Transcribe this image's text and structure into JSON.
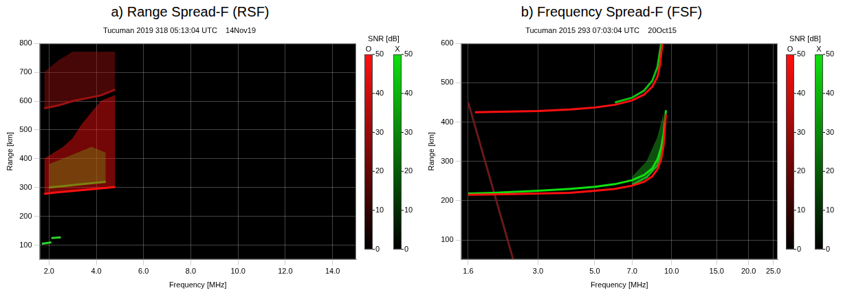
{
  "chart_data": [
    {
      "type": "scatter",
      "title": "a) Range Spread-F (RSF)",
      "subtitle": "Tucuman 2019 318 05:13:04 UTC    14Nov19",
      "xlabel": "Frequency [MHz]",
      "ylabel": "Range [km]",
      "xlim": [
        1.6,
        15
      ],
      "xticks": [
        {
          "value": 2,
          "label": "2.0"
        },
        {
          "value": 4,
          "label": "4.0"
        },
        {
          "value": 6,
          "label": "6.0"
        },
        {
          "value": 8,
          "label": "8.0"
        },
        {
          "value": 10,
          "label": "10.0"
        },
        {
          "value": 12,
          "label": "12.0"
        },
        {
          "value": 14,
          "label": "14.0"
        }
      ],
      "ylim": [
        50,
        800
      ],
      "yticks": [
        100,
        200,
        300,
        400,
        500,
        600,
        700,
        800
      ],
      "grid": true,
      "colorbar": {
        "title": "SNR [dB]",
        "range": [
          0,
          50
        ],
        "ticks": [
          0,
          10,
          20,
          30,
          40,
          50
        ]
      },
      "series": [
        {
          "name": "O",
          "color": "#ff1010",
          "type": "area",
          "x": [
            1.8,
            2.2,
            2.6,
            3.0,
            3.4,
            3.8,
            4.2,
            4.8
          ],
          "values": [
            278,
            282,
            285,
            288,
            291,
            294,
            297,
            302
          ],
          "upper": [
            400,
            420,
            440,
            470,
            520,
            560,
            600,
            620
          ]
        },
        {
          "name": "O",
          "color": "#a01010",
          "type": "area",
          "x": [
            1.8,
            2.4,
            3.0,
            3.6,
            4.2,
            4.8
          ],
          "values": [
            575,
            585,
            600,
            610,
            620,
            640
          ],
          "upper": [
            700,
            740,
            770,
            770,
            770,
            770
          ]
        },
        {
          "name": "X",
          "color": "#10e010",
          "type": "area",
          "x": [
            2.0,
            2.6,
            3.2,
            3.8,
            4.4
          ],
          "values": [
            300,
            305,
            310,
            315,
            320
          ],
          "upper": [
            380,
            400,
            420,
            440,
            420
          ]
        },
        {
          "name": "X",
          "color": "#30d030",
          "type": "line",
          "x": [
            1.7,
            2.1
          ],
          "values": [
            105,
            110
          ]
        },
        {
          "name": "X",
          "color": "#30d030",
          "type": "line",
          "x": [
            2.1,
            2.5
          ],
          "values": [
            125,
            127
          ]
        }
      ]
    },
    {
      "type": "scatter",
      "title": "b) Frequency Spread-F (FSF)",
      "subtitle": "Tucuman 2015 293 07:03:04 UTC    20Oct15",
      "xlabel": "Frequency [MHz]",
      "ylabel": "Range [km]",
      "log": "x",
      "xlim": [
        1.5,
        26
      ],
      "xticks": [
        1.6,
        {
          "value": 3,
          "label": "3.0"
        },
        {
          "value": 5,
          "label": "5.0"
        },
        {
          "value": 7,
          "label": "7.0"
        },
        {
          "value": 10,
          "label": "10.0"
        },
        {
          "value": 15,
          "label": "15.0"
        },
        {
          "value": 20,
          "label": "20.0"
        },
        {
          "value": 25,
          "label": "25.0"
        }
      ],
      "ylim": [
        50,
        600
      ],
      "yticks": [
        100,
        200,
        300,
        400,
        500,
        600
      ],
      "grid": true,
      "colorbar": {
        "title": "SNR [dB]",
        "range": [
          0,
          50
        ],
        "ticks": [
          0,
          10,
          20,
          30,
          40,
          50
        ]
      },
      "series": [
        {
          "name": "O",
          "color": "#ff1010",
          "type": "line",
          "x": [
            1.6,
            2.0,
            3.0,
            4.0,
            5.0,
            6.0,
            7.0,
            7.8,
            8.4,
            8.8,
            9.1,
            9.3,
            9.4,
            9.5
          ],
          "values": [
            215,
            216,
            218,
            220,
            225,
            230,
            238,
            248,
            262,
            280,
            305,
            340,
            380,
            420
          ]
        },
        {
          "name": "X",
          "color": "#10e010",
          "type": "line",
          "x": [
            1.6,
            2.0,
            3.0,
            4.0,
            5.0,
            6.0,
            7.0,
            7.8,
            8.4,
            8.8,
            9.1,
            9.3,
            9.4,
            9.5
          ],
          "values": [
            218,
            220,
            225,
            230,
            235,
            242,
            252,
            265,
            282,
            305,
            335,
            370,
            400,
            430
          ]
        },
        {
          "name": "X",
          "color": "#20b020",
          "type": "area",
          "x": [
            7.0,
            8.0,
            8.8,
            9.3
          ],
          "values": [
            240,
            260,
            290,
            340
          ],
          "upper": [
            260,
            300,
            360,
            420
          ]
        },
        {
          "name": "O",
          "color": "#ff1010",
          "type": "line",
          "x": [
            1.7,
            2.0,
            3.0,
            4.0,
            5.0,
            6.0,
            7.0,
            7.8,
            8.4,
            8.8,
            9.0,
            9.2
          ],
          "values": [
            425,
            426,
            428,
            432,
            437,
            444,
            455,
            470,
            490,
            515,
            545,
            600
          ]
        },
        {
          "name": "X",
          "color": "#10c010",
          "type": "line",
          "x": [
            6.0,
            7.0,
            7.8,
            8.4,
            8.8,
            9.1
          ],
          "values": [
            450,
            462,
            480,
            505,
            540,
            600
          ]
        },
        {
          "name": "O",
          "color": "#6a1a1a",
          "type": "line",
          "x": [
            1.6,
            2.4
          ],
          "values": [
            450,
            50
          ]
        }
      ]
    }
  ]
}
